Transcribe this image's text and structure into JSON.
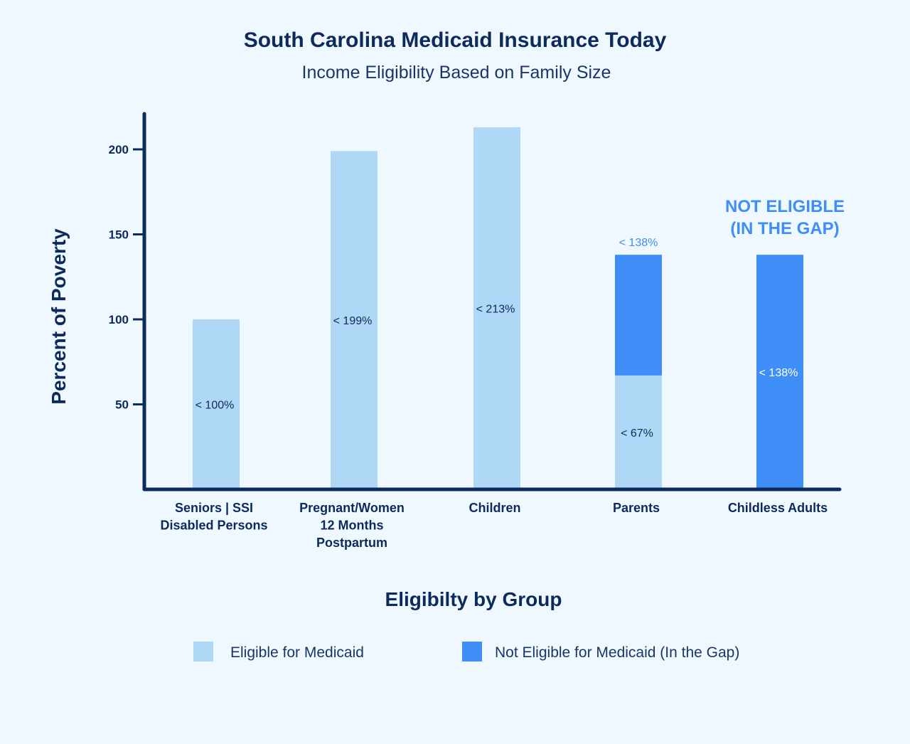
{
  "chart_data": {
    "type": "bar",
    "stacked": true,
    "title": "South Carolina Medicaid Insurance Today",
    "subtitle": "Income Eligibility Based on Family Size",
    "xlabel": "Eligibilty by Group",
    "ylabel": "Percent of Poverty",
    "ylim": [
      0,
      220
    ],
    "yticks": [
      50,
      100,
      150,
      200
    ],
    "grid": false,
    "legend_position": "bottom",
    "categories": [
      [
        "Seniors | SSI",
        "Disabled Persons"
      ],
      [
        "Pregnant/Women",
        "12 Months",
        "Postpartum"
      ],
      [
        "Children"
      ],
      [
        "Parents"
      ],
      [
        "Childless Adults"
      ]
    ],
    "series": [
      {
        "name": "Eligible for Medicaid",
        "color": "#afd8f7",
        "values": [
          100,
          199,
          213,
          67,
          0
        ],
        "labels": [
          "< 100%",
          "< 199%",
          "< 213%",
          "< 67%",
          ""
        ]
      },
      {
        "name": "Not Eligible for Medicaid (In the Gap)",
        "color": "#3f8ef8",
        "values": [
          0,
          0,
          0,
          71,
          138
        ],
        "labels": [
          "",
          "",
          "",
          "",
          "< 138%"
        ]
      }
    ],
    "totals_labels": [
      "",
      "",
      "",
      "< 138%",
      ""
    ],
    "annotation": {
      "category_index": 4,
      "lines": [
        "NOT ELIGIBLE",
        "(IN THE GAP)"
      ]
    },
    "colors": {
      "axis": "#0d2a5c",
      "background": "#eef8fe"
    }
  }
}
